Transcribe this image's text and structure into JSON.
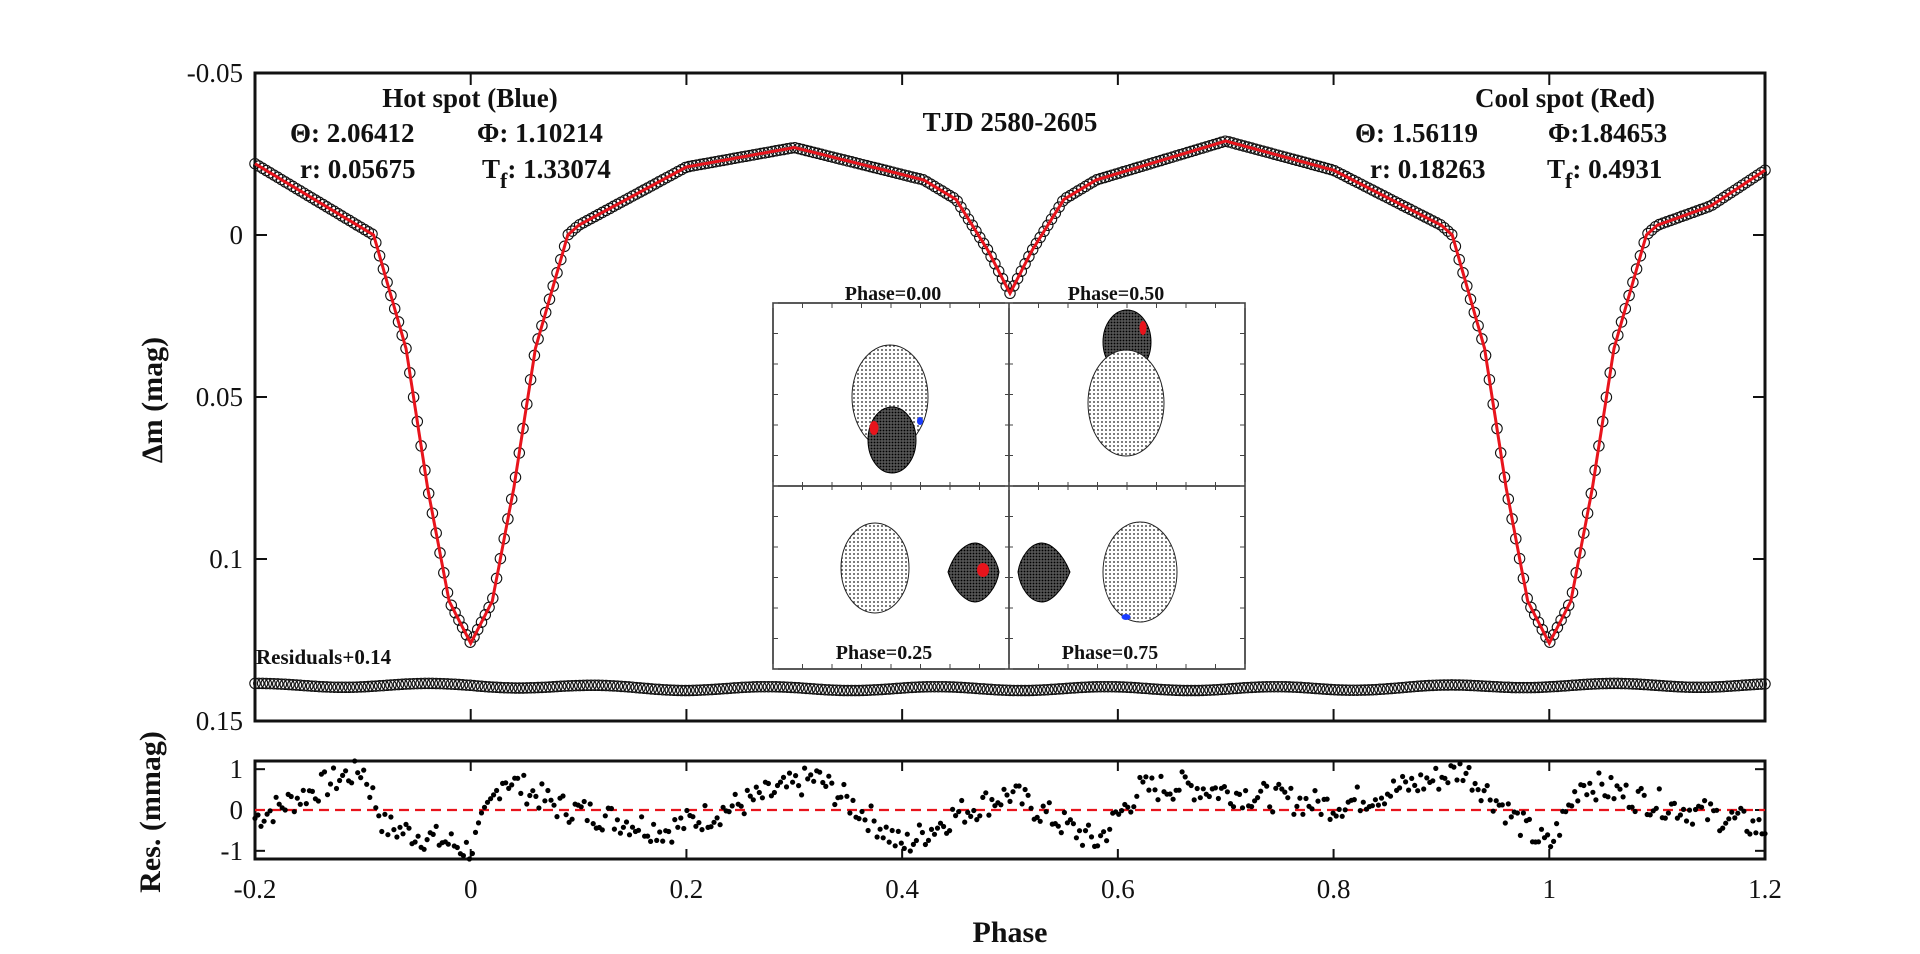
{
  "chart_data": [
    {
      "type": "scatter",
      "name": "light-curve",
      "title": "TJD 2580-2605",
      "xlabel": "Phase",
      "ylabel": "Δm (mag)",
      "xlim": [
        -0.2,
        1.2
      ],
      "ylim": [
        -0.05,
        0.15
      ],
      "y_inverted": true,
      "yticks": [
        "-0.05",
        "0",
        "0.05",
        "0.1",
        "0.15"
      ],
      "xticks": [
        "-0.2",
        "0",
        "0.2",
        "0.4",
        "0.6",
        "0.8",
        "1",
        "1.2"
      ],
      "series": [
        {
          "name": "observed",
          "style": "open-circles",
          "color": "#000000",
          "x": [
            -0.2,
            -0.15,
            -0.1,
            -0.09,
            -0.06,
            -0.04,
            -0.02,
            0.0,
            0.02,
            0.04,
            0.06,
            0.09,
            0.1,
            0.2,
            0.3,
            0.42,
            0.45,
            0.48,
            0.5,
            0.52,
            0.55,
            0.58,
            0.6,
            0.7,
            0.8,
            0.9,
            0.91,
            0.94,
            0.96,
            0.98,
            1.0,
            1.02,
            1.04,
            1.06,
            1.09,
            1.1,
            1.15,
            1.2
          ],
          "y": [
            -0.022,
            -0.012,
            -0.002,
            0.0,
            0.035,
            0.078,
            0.113,
            0.126,
            0.113,
            0.078,
            0.035,
            0.0,
            -0.003,
            -0.021,
            -0.027,
            -0.017,
            -0.011,
            0.005,
            0.018,
            0.005,
            -0.011,
            -0.017,
            -0.019,
            -0.029,
            -0.02,
            -0.003,
            0.0,
            0.035,
            0.078,
            0.113,
            0.126,
            0.113,
            0.078,
            0.035,
            0.0,
            -0.003,
            -0.009,
            -0.02
          ]
        },
        {
          "name": "model",
          "style": "line",
          "color": "#e8141c",
          "x": [
            -0.2,
            -0.15,
            -0.1,
            -0.09,
            -0.06,
            -0.04,
            -0.02,
            0.0,
            0.02,
            0.04,
            0.06,
            0.09,
            0.1,
            0.2,
            0.3,
            0.42,
            0.45,
            0.48,
            0.5,
            0.52,
            0.55,
            0.58,
            0.6,
            0.7,
            0.8,
            0.9,
            0.91,
            0.94,
            0.96,
            0.98,
            1.0,
            1.02,
            1.04,
            1.06,
            1.09,
            1.1,
            1.15,
            1.2
          ],
          "y": [
            -0.022,
            -0.012,
            -0.002,
            0.0,
            0.035,
            0.078,
            0.113,
            0.126,
            0.113,
            0.078,
            0.035,
            0.0,
            -0.003,
            -0.021,
            -0.027,
            -0.017,
            -0.011,
            0.005,
            0.018,
            0.005,
            -0.011,
            -0.017,
            -0.019,
            -0.029,
            -0.02,
            -0.003,
            0.0,
            0.035,
            0.078,
            0.113,
            0.126,
            0.113,
            0.078,
            0.035,
            0.0,
            -0.003,
            -0.009,
            -0.02
          ]
        },
        {
          "name": "residuals-offset",
          "style": "open-circles",
          "color": "#000000",
          "offset": 0.14,
          "x": [
            -0.2,
            0.0,
            0.2,
            0.4,
            0.6,
            0.8,
            1.0,
            1.2
          ],
          "y": [
            0.139,
            0.139,
            0.14,
            0.14,
            0.14,
            0.14,
            0.139,
            0.139
          ]
        }
      ],
      "annotations": {
        "title": "TJD 2580-2605",
        "residuals_label": "Residuals+0.14",
        "hot_spot": {
          "heading": "Hot spot (Blue)",
          "theta": "Θ: 2.06412",
          "phi": "Φ: 1.10214",
          "r": "r: 0.05675",
          "tf_label": "T",
          "tf_sub": "f",
          "tf_value": ": 1.33074"
        },
        "cool_spot": {
          "heading": "Cool spot (Red)",
          "theta": "Θ: 1.56119",
          "phi": "Φ:1.84653",
          "r": "r: 0.18263",
          "tf_label": "T",
          "tf_sub": "f",
          "tf_value": ": 0.4931"
        }
      },
      "inset": {
        "panels": [
          {
            "label": "Phase=0.00",
            "position": "top-left"
          },
          {
            "label": "Phase=0.50",
            "position": "top-right"
          },
          {
            "label": "Phase=0.25",
            "position": "bottom-left"
          },
          {
            "label": "Phase=0.75",
            "position": "bottom-right"
          }
        ],
        "spot_colors": {
          "hot": "#1a3cff",
          "cool": "#e8141c"
        }
      }
    },
    {
      "type": "scatter",
      "name": "residuals",
      "xlabel": "Phase",
      "ylabel": "Res. (mmag)",
      "xlim": [
        -0.2,
        1.2
      ],
      "ylim": [
        -1.2,
        1.2
      ],
      "yticks": [
        "1",
        "0",
        "-1"
      ],
      "xticks": [
        "-0.2",
        "0",
        "0.2",
        "0.4",
        "0.6",
        "0.8",
        "1",
        "1.2"
      ],
      "zero_line": {
        "value": 0,
        "style": "dashed",
        "color": "#e8141c"
      },
      "series": [
        {
          "name": "residuals",
          "style": "filled-dots",
          "color": "#000000",
          "x": [
            -0.2,
            -0.12,
            -0.1,
            -0.08,
            -0.02,
            0.0,
            0.03,
            0.08,
            0.18,
            0.3,
            0.32,
            0.38,
            0.4,
            0.45,
            0.5,
            0.58,
            0.62,
            0.66,
            0.8,
            0.9,
            0.92,
            0.98,
            1.0,
            1.03,
            1.08,
            1.18,
            1.2
          ],
          "y": [
            -0.2,
            0.8,
            1.0,
            -0.4,
            -0.8,
            -1.0,
            0.8,
            0.1,
            -0.5,
            0.6,
            0.8,
            -0.4,
            -0.9,
            -0.1,
            0.4,
            -0.8,
            0.5,
            0.6,
            0.1,
            0.8,
            1.0,
            -0.5,
            -0.9,
            0.7,
            0.3,
            -0.3,
            -0.5
          ]
        }
      ]
    }
  ]
}
